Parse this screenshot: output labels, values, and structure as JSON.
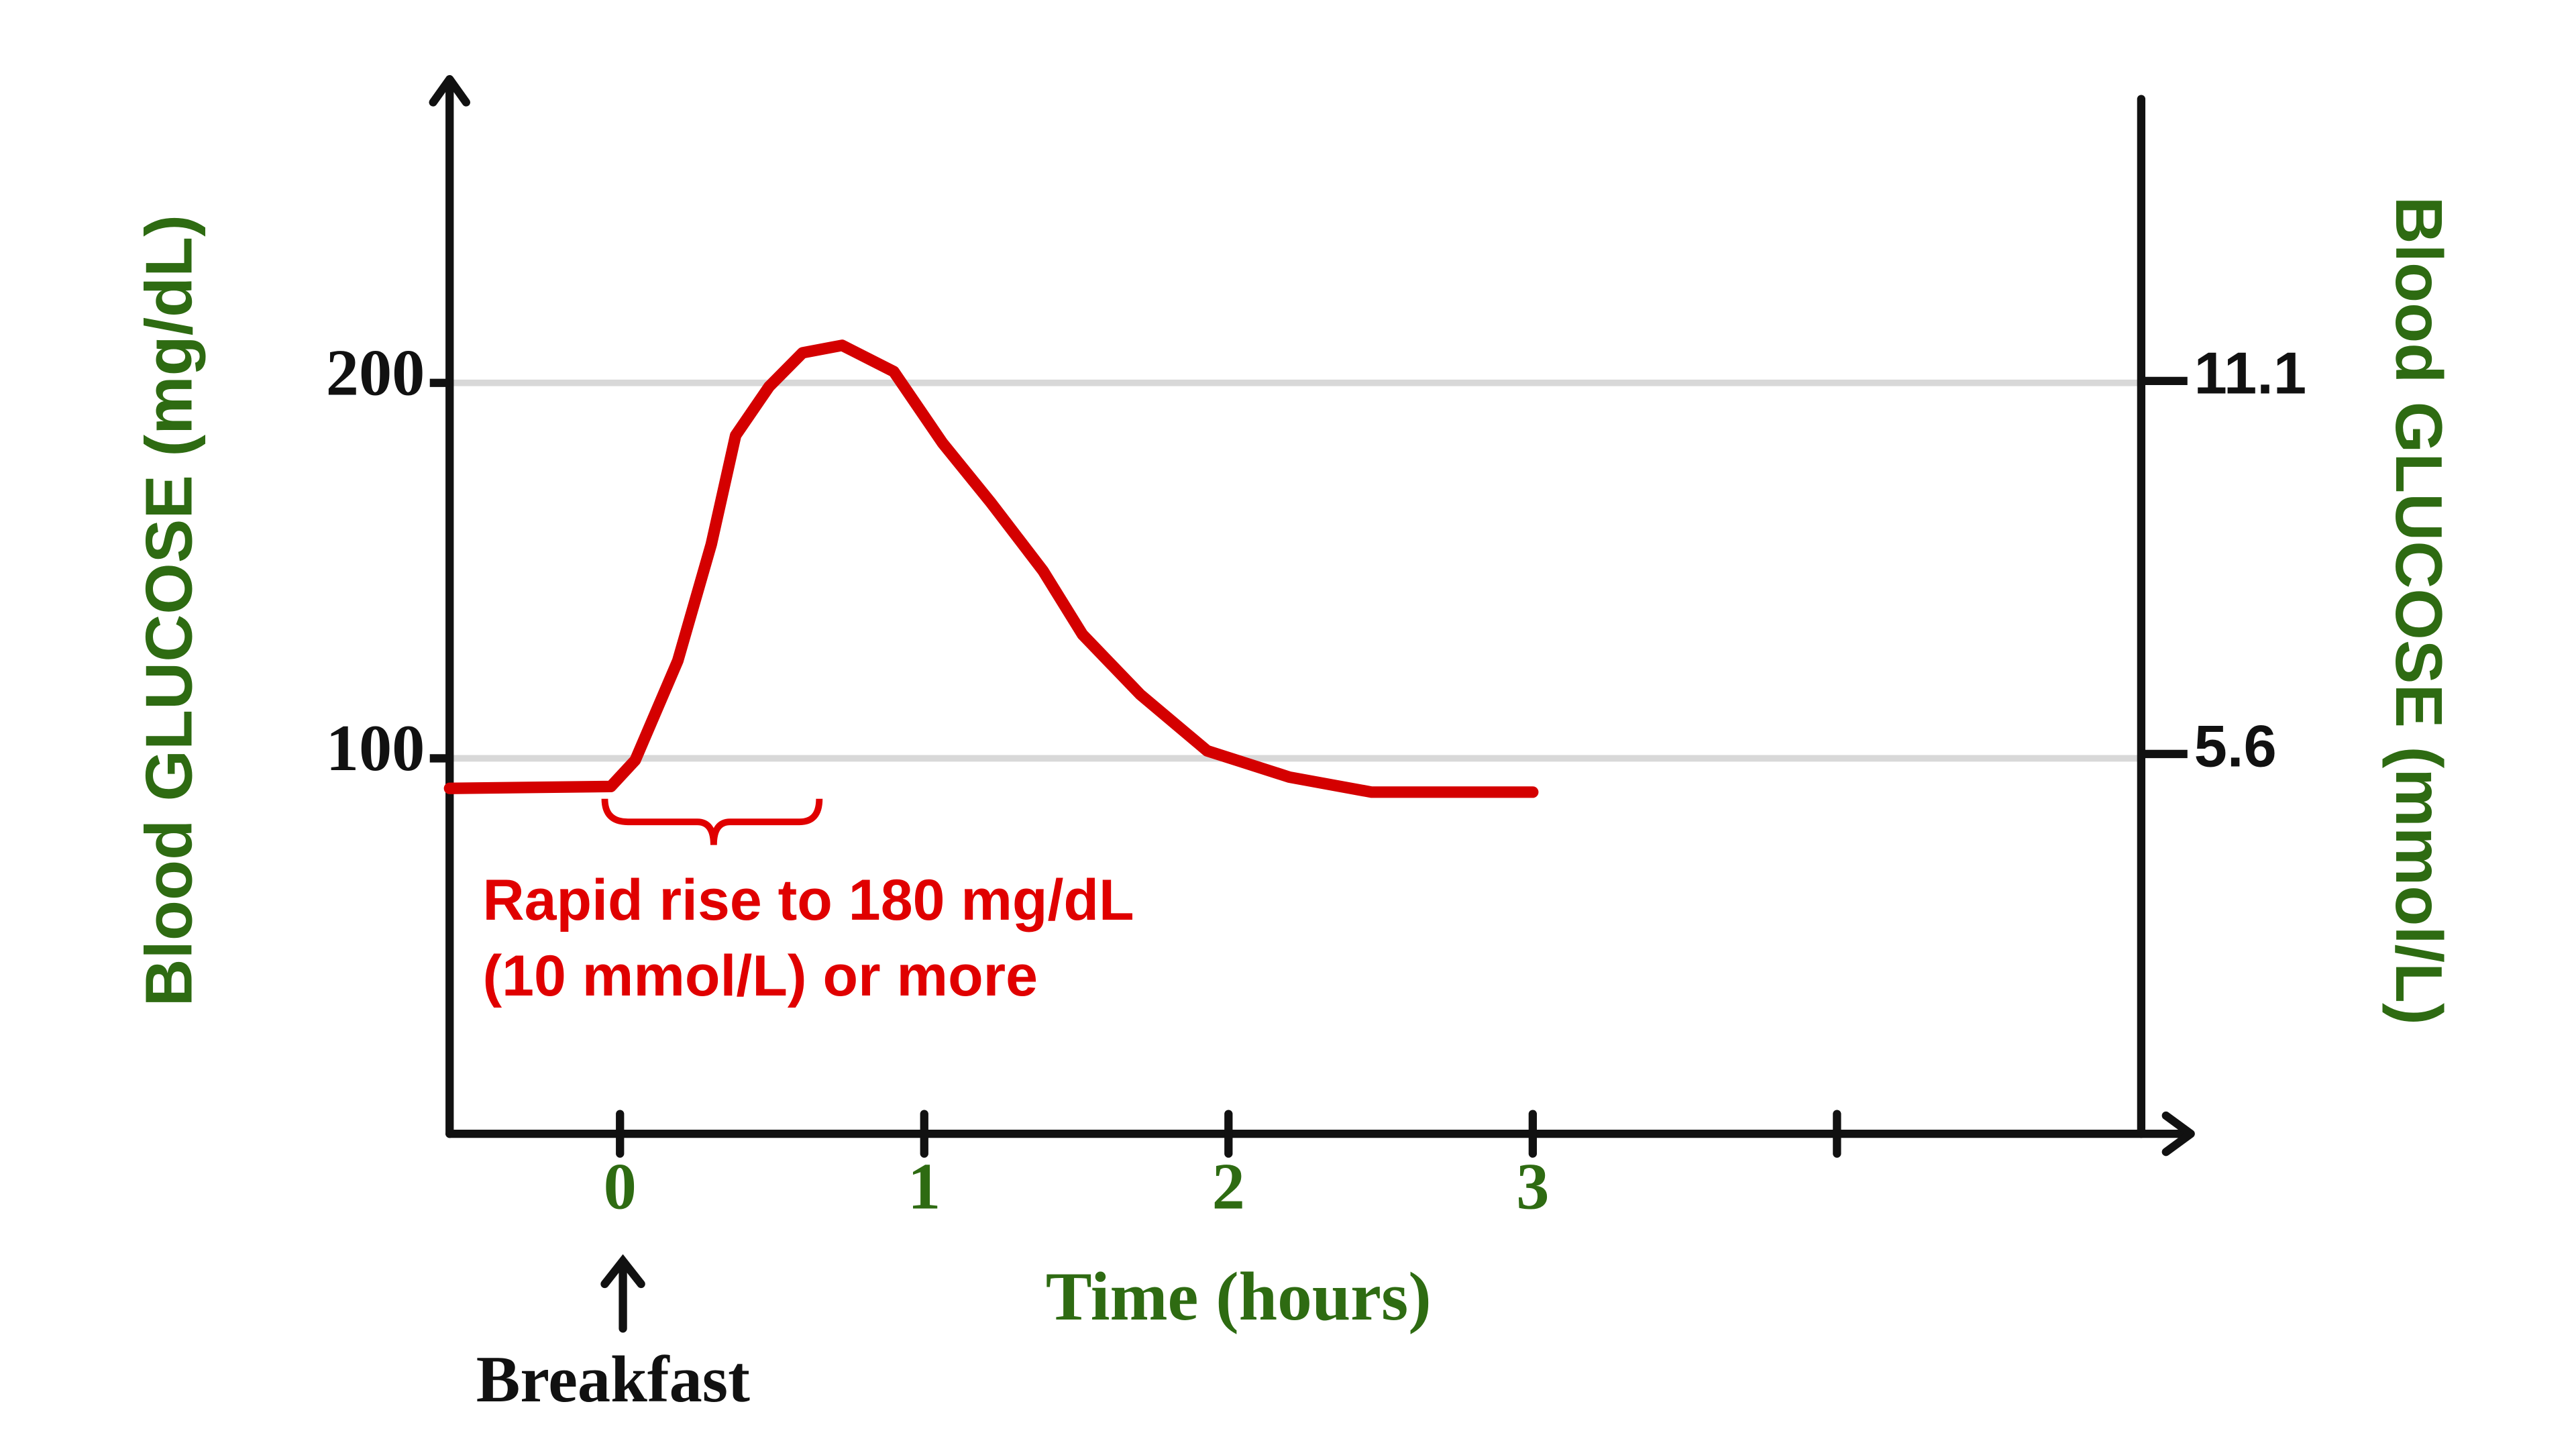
{
  "chart_data": {
    "type": "line",
    "x_label": "Time (hours)",
    "y_label": "Blood GLUCOSE (mg/dL)",
    "y2_label": "Blood GLUCOSE (mmol/L)",
    "x": [
      -0.56,
      -0.03,
      0.05,
      0.19,
      0.3,
      0.38,
      0.49,
      0.6,
      0.73,
      0.9,
      1.06,
      1.22,
      1.39,
      1.52,
      1.71,
      1.93,
      2.2,
      2.47,
      3.0
    ],
    "series": [
      {
        "color": "#d40000",
        "values": [
          92,
          92.5,
          99.5,
          126,
          157,
          186,
          199,
          208,
          210,
          203,
          184,
          168,
          150,
          133,
          117,
          102,
          95,
          91,
          91
        ]
      }
    ],
    "xlim": [
      -0.56,
      5.0
    ],
    "xticks": [
      0,
      1,
      2,
      3,
      {
        "value": 4,
        "label": null
      }
    ],
    "ylim": [
      0,
      280
    ],
    "yticks": [
      100,
      200
    ],
    "y2lim": [
      0,
      15.5
    ],
    "y2ticks": [
      5.6,
      11.1
    ],
    "grid": true,
    "annotations": [
      "Rapid rise to 180 mg/dL",
      "(10 mmol/L) or more",
      "Breakfast"
    ]
  }
}
